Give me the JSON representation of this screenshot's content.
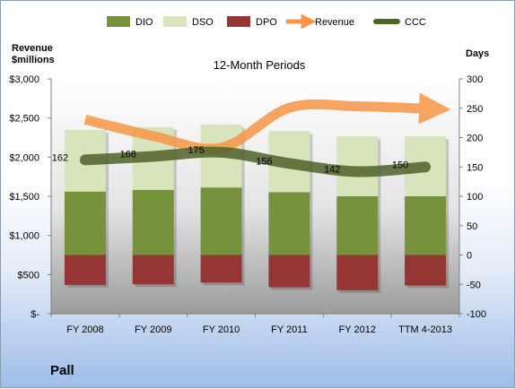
{
  "company": "Pall",
  "chart_data": {
    "type": "bar",
    "title": "12-Month Periods",
    "y_left_label": "Revenue\n$millions",
    "y_right_label": "Days",
    "categories": [
      "FY 2008",
      "FY 2009",
      "FY 2010",
      "FY 2011",
      "FY 2012",
      "TTM 4-2013"
    ],
    "left_axis": {
      "min": 0,
      "max": 3000,
      "step": 500,
      "ticks": [
        "$-",
        "$500",
        "$1,000",
        "$1,500",
        "$2,000",
        "$2,500",
        "$3,000"
      ]
    },
    "right_axis": {
      "min": -100,
      "max": 300,
      "step": 50,
      "ticks": [
        "-100",
        "-50",
        "0",
        "50",
        "100",
        "150",
        "200",
        "250",
        "300"
      ]
    },
    "series": [
      {
        "name": "DIO",
        "unit": "days",
        "color": "#76933c",
        "values": [
          108,
          111,
          115,
          107,
          100,
          100
        ]
      },
      {
        "name": "DSO",
        "unit": "days",
        "color": "#d7e4bc",
        "values": [
          105,
          107,
          107,
          104,
          102,
          102
        ]
      },
      {
        "name": "DPO",
        "unit": "days",
        "color": "#963634",
        "values": [
          -51,
          -50,
          -47,
          -55,
          -60,
          -52
        ]
      },
      {
        "name": "Revenue",
        "unit": "$millions",
        "color": "#f79646",
        "values": [
          2480,
          2270,
          2120,
          2630,
          2650,
          2620
        ]
      },
      {
        "name": "CCC",
        "unit": "days",
        "color": "#4f6228",
        "values": [
          162,
          168,
          175,
          156,
          142,
          150
        ]
      }
    ],
    "data_labels": [
      "162",
      "168",
      "175",
      "156",
      "142",
      "150"
    ],
    "grid": false,
    "legend_position": "top"
  }
}
